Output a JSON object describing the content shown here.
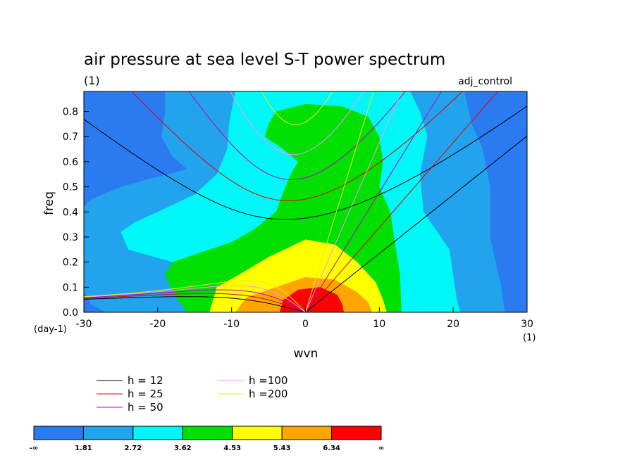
{
  "chart_data": {
    "type": "heatmap",
    "title": "air pressure at sea level S-T power spectrum",
    "subtitle_left": "(1)",
    "subtitle_right": "adj_control",
    "xlabel": "wvn",
    "ylabel": "freq",
    "x_unit_label": "(1)",
    "y_unit_label": "(day-1)",
    "xlim": [
      -30,
      30
    ],
    "ylim": [
      0,
      0.88
    ],
    "xticks": [
      -30,
      -20,
      -10,
      0,
      10,
      20,
      30
    ],
    "xtick_labels": [
      "-30",
      "-20",
      "-10",
      "0",
      "10",
      "20",
      "30"
    ],
    "yticks": [
      0,
      0.1,
      0.2,
      0.3,
      0.4,
      0.5,
      0.6,
      0.7,
      0.8
    ],
    "ytick_labels": [
      "0.0",
      "0.1",
      "0.2",
      "0.3",
      "0.4",
      "0.5",
      "0.6",
      "0.7",
      "0.8"
    ],
    "contour_levels": [
      "-∞",
      "1.81",
      "2.72",
      "3.62",
      "4.53",
      "5.43",
      "6.34",
      "∞"
    ],
    "contour_colors": [
      "#2b7bf0",
      "#22a3ee",
      "#00f7f7",
      "#00e000",
      "#ffff00",
      "#ffa500",
      "#ff0000"
    ],
    "dispersion_curves": [
      {
        "name": "h = 12",
        "h": 12,
        "color": "#000000"
      },
      {
        "name": "h = 25",
        "h": 25,
        "color": "#e00000"
      },
      {
        "name": "h = 50",
        "h": 50,
        "color": "#c000c0"
      },
      {
        "name": "h =100",
        "h": 100,
        "color": "#ff90ff"
      },
      {
        "name": "h =200",
        "h": 200,
        "color": "#f0f000"
      }
    ],
    "legend_placement": "bottom-left"
  }
}
